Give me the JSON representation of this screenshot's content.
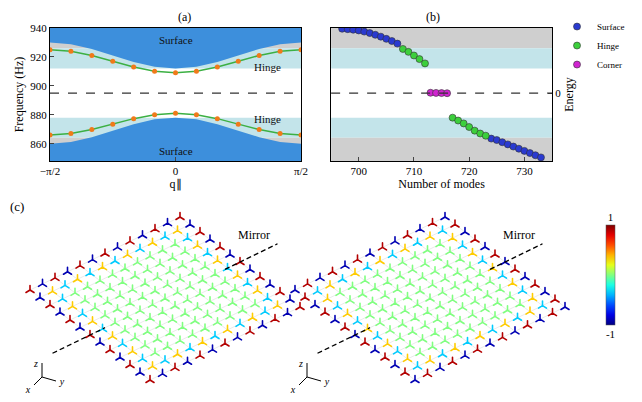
{
  "chart_data": [
    {
      "type": "line",
      "title": "(a)",
      "x_title": "q∥",
      "y_title": "Frequency (Hz)",
      "xlim": [
        -1.5708,
        1.5708
      ],
      "xticks": [
        {
          "value": -1.5708,
          "label": "−π/2"
        },
        0,
        {
          "value": 1.5708,
          "label": "π/2"
        }
      ],
      "ylim": [
        848,
        940
      ],
      "yticks": [
        860,
        880,
        900,
        920,
        940
      ],
      "reference_line": 895,
      "bands": [
        {
          "lower": 926,
          "upper": 940,
          "color": "#cfcfcf"
        },
        {
          "lower": 912,
          "upper": 926,
          "color": "#c3e4ea"
        },
        {
          "lower": 864,
          "upper": 878,
          "color": "#c3e4ea"
        },
        {
          "lower": 848,
          "upper": 864,
          "color": "#cfcfcf"
        }
      ],
      "x": [
        -1.5708,
        -1.309,
        -1.0472,
        -0.7854,
        -0.5236,
        -0.2618,
        0,
        0.2618,
        0.5236,
        0.7854,
        1.0472,
        1.309,
        1.5708
      ],
      "series": [
        {
          "type": "area",
          "color": "#3d8fdc",
          "lower": [
            930,
            928.8,
            925.5,
            921,
            916.5,
            913.2,
            912,
            913.2,
            916.5,
            921,
            925.5,
            928.8,
            930
          ],
          "upper": [
            940,
            940,
            940,
            940,
            940,
            940,
            940,
            940,
            940,
            940,
            940,
            940,
            940
          ]
        },
        {
          "type": "area",
          "color": "#3d8fdc",
          "lower": [
            848,
            848,
            848,
            848,
            848,
            848,
            848,
            848,
            848,
            848,
            848,
            848,
            848
          ],
          "upper": [
            860,
            861.2,
            864.5,
            869,
            873.5,
            876.8,
            878,
            876.8,
            873.5,
            869,
            864.5,
            861.2,
            860
          ]
        },
        {
          "type": "line",
          "color": "#f07a1a",
          "marker": "circle",
          "values": [
            925,
            923.9,
            921,
            917,
            913,
            910.1,
            909,
            910.1,
            913,
            917,
            921,
            923.9,
            925
          ]
        },
        {
          "type": "line",
          "color": "#f07a1a",
          "marker": "circle",
          "values": [
            866,
            867,
            869.8,
            873.5,
            877.3,
            880,
            881,
            880,
            877.3,
            873.5,
            869.8,
            867,
            866
          ]
        }
      ],
      "annotations": [
        {
          "text": "Surface",
          "x": 0,
          "y": 932
        },
        {
          "text": "Hinge",
          "x": 1.15,
          "y": 913
        },
        {
          "text": "Hinge",
          "x": 1.15,
          "y": 877
        },
        {
          "text": "Surface",
          "x": 0,
          "y": 855
        }
      ]
    },
    {
      "type": "scatter",
      "title": "(b)",
      "x_title": "Number of modes",
      "y2_title": "Energy",
      "xlim": [
        695,
        735
      ],
      "xticks": [
        700,
        710,
        720,
        730
      ],
      "ylim": [
        848,
        940
      ],
      "y2lim": [
        -47,
        45
      ],
      "y2ticks": [
        0
      ],
      "reference_line": 0,
      "legend": "right",
      "bands": [
        {
          "lower": 926,
          "upper": 940,
          "color": "#cfcfcf"
        },
        {
          "lower": 912,
          "upper": 926,
          "color": "#c3e4ea"
        },
        {
          "lower": 864,
          "upper": 878,
          "color": "#c3e4ea"
        },
        {
          "lower": 848,
          "upper": 864,
          "color": "#cfcfcf"
        }
      ],
      "series": [
        {
          "name": "Surface",
          "color": "#2a3ad0",
          "marker": "circle",
          "x": [
            697,
            698,
            699,
            700,
            701,
            702,
            703,
            704,
            705,
            706,
            707,
            724,
            725,
            726,
            727,
            728,
            729,
            730,
            731,
            732,
            733
          ],
          "values": [
            939.5,
            939.2,
            938.8,
            938.3,
            937.5,
            936.5,
            935.3,
            934,
            932.5,
            931,
            929.2,
            863.5,
            862.5,
            861,
            859.5,
            858,
            856.5,
            855,
            853.5,
            852,
            850.5
          ]
        },
        {
          "name": "Hinge",
          "color": "#3ccf3c",
          "marker": "circle",
          "x": [
            708,
            709,
            710,
            711,
            712,
            717,
            718,
            719,
            720,
            721,
            722,
            723
          ],
          "values": [
            925.5,
            923.5,
            921,
            918.5,
            915.5,
            878,
            876,
            874,
            871.5,
            869,
            867,
            865.5
          ]
        },
        {
          "name": "Corner",
          "color": "#d024d0",
          "marker": "circle",
          "x": [
            713,
            714,
            715,
            716
          ],
          "values": [
            895.2,
            895.1,
            895,
            894.9
          ]
        }
      ]
    }
  ],
  "panel_c": {
    "title": "(c)",
    "images": [
      {
        "mirror_label": "Mirror",
        "axis_labels": [
          "x",
          "y",
          "z"
        ]
      },
      {
        "mirror_label": "Mirror",
        "axis_labels": [
          "x",
          "y",
          "z"
        ]
      }
    ],
    "colorbar": {
      "range": [
        -1,
        1
      ],
      "ticks": [
        1,
        -1
      ]
    }
  }
}
